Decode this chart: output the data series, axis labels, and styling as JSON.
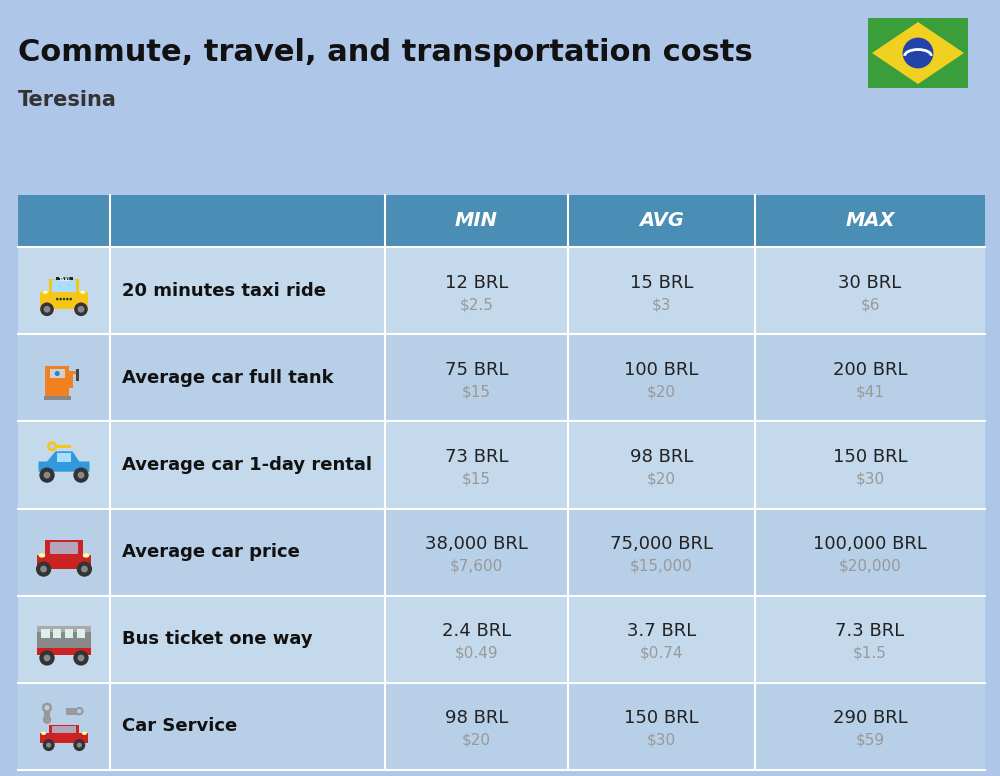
{
  "title": "Commute, travel, and transportation costs",
  "subtitle": "Teresina",
  "bg_color": "#aec6e8",
  "header_bg": "#4a8db5",
  "header_text_color": "#ffffff",
  "row_bg_light": "#c5d9ed",
  "row_bg_dark": "#b8cfe8",
  "divider_color": "#ffffff",
  "columns": [
    "MIN",
    "AVG",
    "MAX"
  ],
  "rows": [
    {
      "label": "20 minutes taxi ride",
      "min_brl": "12 BRL",
      "min_usd": "$2.5",
      "avg_brl": "15 BRL",
      "avg_usd": "$3",
      "max_brl": "30 BRL",
      "max_usd": "$6"
    },
    {
      "label": "Average car full tank",
      "min_brl": "75 BRL",
      "min_usd": "$15",
      "avg_brl": "100 BRL",
      "avg_usd": "$20",
      "max_brl": "200 BRL",
      "max_usd": "$41"
    },
    {
      "label": "Average car 1-day rental",
      "min_brl": "73 BRL",
      "min_usd": "$15",
      "avg_brl": "98 BRL",
      "avg_usd": "$20",
      "max_brl": "150 BRL",
      "max_usd": "$30"
    },
    {
      "label": "Average car price",
      "min_brl": "38,000 BRL",
      "min_usd": "$7,600",
      "avg_brl": "75,000 BRL",
      "avg_usd": "$15,000",
      "max_brl": "100,000 BRL",
      "max_usd": "$20,000"
    },
    {
      "label": "Bus ticket one way",
      "min_brl": "2.4 BRL",
      "min_usd": "$0.49",
      "avg_brl": "3.7 BRL",
      "avg_usd": "$0.74",
      "max_brl": "7.3 BRL",
      "max_usd": "$1.5"
    },
    {
      "label": "Car Service",
      "min_brl": "98 BRL",
      "min_usd": "$20",
      "avg_brl": "150 BRL",
      "avg_usd": "$30",
      "max_brl": "290 BRL",
      "max_usd": "$59"
    }
  ],
  "title_fontsize": 22,
  "subtitle_fontsize": 15,
  "header_fontsize": 14,
  "row_label_fontsize": 13,
  "row_value_fontsize": 13,
  "row_usd_fontsize": 11
}
